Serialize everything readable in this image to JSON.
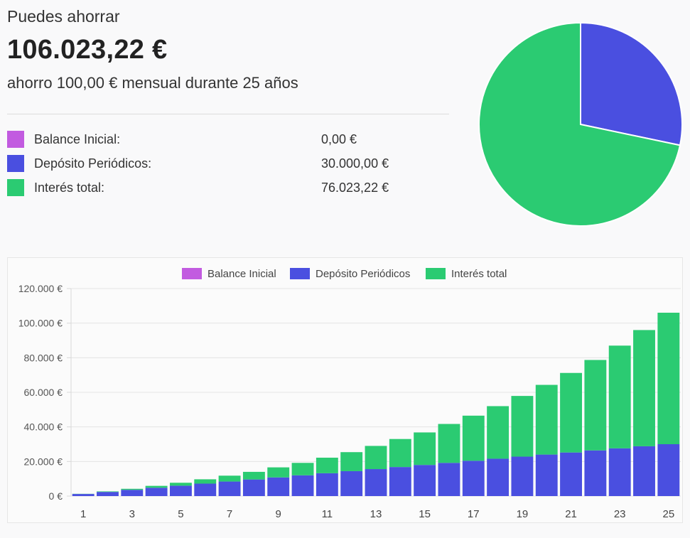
{
  "summary": {
    "label": "Puedes ahorrar",
    "total": "106.023,22 €",
    "description": "ahorro 100,00 € mensual durante 25 años"
  },
  "breakdown": [
    {
      "name": "Balance Inicial:",
      "value": "0,00 €",
      "color": "#c25be0"
    },
    {
      "name": "Depósito Periódicos:",
      "value": "30.000,00 €",
      "color": "#4a4fe0"
    },
    {
      "name": "Interés total:",
      "value": "76.023,22 €",
      "color": "#2bcb72"
    }
  ],
  "chart_data": [
    {
      "type": "pie",
      "labels": [
        "Balance Inicial",
        "Depósito Periódicos",
        "Interés total"
      ],
      "values": [
        0,
        30000.0,
        76023.22
      ],
      "colors": [
        "#c25be0",
        "#4a4fe0",
        "#2bcb72"
      ]
    },
    {
      "type": "bar",
      "stacked": true,
      "legend": [
        "Balance Inicial",
        "Depósito Periódicos",
        "Interés total"
      ],
      "legend_position": "top",
      "x": [
        1,
        2,
        3,
        4,
        5,
        6,
        7,
        8,
        9,
        10,
        11,
        12,
        13,
        14,
        15,
        16,
        17,
        18,
        19,
        20,
        21,
        22,
        23,
        24,
        25
      ],
      "x_tick_labels": [
        "1",
        "3",
        "5",
        "7",
        "9",
        "11",
        "13",
        "15",
        "17",
        "19",
        "21",
        "23",
        "25"
      ],
      "y_tick_labels": [
        "0 €",
        "20.000 €",
        "40.000 €",
        "60.000 €",
        "80.000 €",
        "100.000 €",
        "120.000 €"
      ],
      "ylim": [
        0,
        120000
      ],
      "grid": true,
      "series": [
        {
          "name": "Balance Inicial",
          "color": "#c25be0",
          "values": [
            0,
            0,
            0,
            0,
            0,
            0,
            0,
            0,
            0,
            0,
            0,
            0,
            0,
            0,
            0,
            0,
            0,
            0,
            0,
            0,
            0,
            0,
            0,
            0,
            0
          ]
        },
        {
          "name": "Depósito Periódicos",
          "color": "#4a4fe0",
          "values": [
            1200,
            2400,
            3600,
            4800,
            6000,
            7200,
            8400,
            9600,
            10800,
            12000,
            13200,
            14400,
            15600,
            16800,
            18000,
            19200,
            20400,
            21600,
            22800,
            24000,
            25200,
            26400,
            27600,
            28800,
            30000
          ]
        },
        {
          "name": "Interés total",
          "color": "#2bcb72",
          "values": [
            100,
            300,
            600,
            1100,
            1700,
            2500,
            3400,
            4400,
            5800,
            7200,
            9000,
            11000,
            13400,
            16200,
            18800,
            22500,
            26100,
            30400,
            35100,
            40300,
            46000,
            52300,
            59400,
            67200,
            76023
          ]
        }
      ]
    }
  ]
}
